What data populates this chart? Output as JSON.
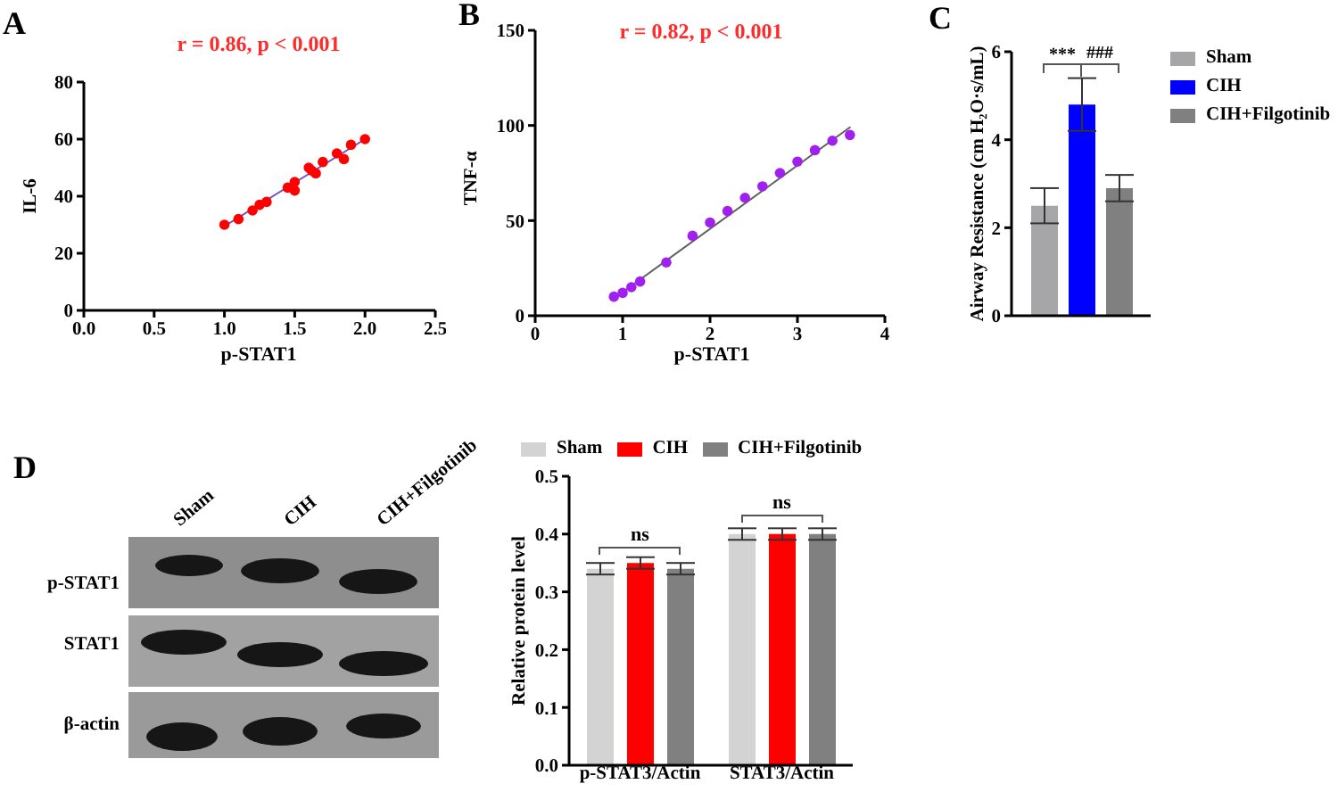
{
  "chart_data": [
    {
      "type": "scatter",
      "title": "A",
      "xlabel": "p-STAT1",
      "ylabel": "IL-6",
      "annotations": [
        "r = 0.86, p < 0.001"
      ],
      "series": [
        {
          "type": "scatter",
          "color": "#ff0000",
          "marker": "circle",
          "x": [
            1.0,
            1.1,
            1.2,
            1.25,
            1.3,
            1.45,
            1.5,
            1.5,
            1.6,
            1.62,
            1.65,
            1.7,
            1.8,
            1.85,
            1.9,
            2.0
          ],
          "values": [
            30,
            32,
            35,
            37,
            38,
            43,
            45,
            42,
            50,
            49,
            48,
            52,
            55,
            53,
            58,
            60
          ]
        },
        {
          "type": "line",
          "color": "#6a4fd0",
          "x": [
            1.0,
            2.0
          ],
          "values": [
            29.5,
            60
          ]
        }
      ],
      "xlim": [
        0,
        2.5
      ],
      "xticks": [
        {
          "value": 0,
          "label": "0.0"
        },
        0.5,
        {
          "value": 1,
          "label": "1.0"
        },
        1.5,
        {
          "value": 2,
          "label": "2.0"
        },
        2.5
      ],
      "ylim": [
        0,
        80
      ],
      "yticks": [
        0,
        20,
        40,
        60,
        80
      ]
    },
    {
      "type": "scatter",
      "title": "B",
      "xlabel": "p-STAT1",
      "ylabel": "TNF-α",
      "annotations": [
        "r = 0.82, p < 0.001"
      ],
      "series": [
        {
          "type": "scatter",
          "color": "#a020f0",
          "marker": "circle",
          "x": [
            0.9,
            1.0,
            1.1,
            1.2,
            1.5,
            1.8,
            2.0,
            2.2,
            2.4,
            2.6,
            2.8,
            3.0,
            3.2,
            3.4,
            3.6
          ],
          "values": [
            10,
            12,
            15,
            18,
            28,
            42,
            49,
            55,
            62,
            68,
            75,
            81,
            87,
            92,
            95
          ]
        },
        {
          "type": "line",
          "color": "#606060",
          "x": [
            0.9,
            3.6
          ],
          "values": [
            9,
            99
          ]
        }
      ],
      "xlim": [
        0,
        4
      ],
      "xticks": [
        0,
        1,
        2,
        3,
        4
      ],
      "ylim": [
        0,
        150
      ],
      "yticks": [
        0,
        50,
        100,
        150
      ]
    },
    {
      "type": "bar",
      "title": "C",
      "ylabel": "Airway Resistance (cm H₂O·s/mL)",
      "categories": [
        null
      ],
      "series": [
        {
          "name": "Sham",
          "color": "#a6a6a8",
          "values": [
            2.5
          ],
          "errors": [
            0.4
          ]
        },
        {
          "name": "CIH",
          "color": "#0000ff",
          "values": [
            4.8
          ],
          "errors": [
            0.6
          ]
        },
        {
          "name": "CIH+Filgotinib",
          "color": "#808080",
          "values": [
            2.9
          ],
          "errors": [
            0.3
          ]
        }
      ],
      "ylim": [
        0,
        6
      ],
      "yticks": [
        0,
        2,
        4,
        6
      ],
      "legend": "right",
      "annotations": [
        "***",
        "###"
      ]
    },
    {
      "type": "other",
      "title": "D",
      "annotations": [
        "Sham",
        "CIH",
        "CIH+Filgotinib",
        "p-STAT1",
        "STAT1",
        "β-actin"
      ]
    },
    {
      "type": "bar",
      "ylabel": "Relative protein level",
      "categories": [
        "p-STAT3/Actin",
        "STAT3/Actin"
      ],
      "series": [
        {
          "name": "Sham",
          "color": "#d3d3d3",
          "values": [
            0.34,
            0.4
          ],
          "errors": [
            0.01,
            0.01
          ]
        },
        {
          "name": "CIH",
          "color": "#ff0000",
          "values": [
            0.35,
            0.4
          ],
          "errors": [
            0.01,
            0.01
          ]
        },
        {
          "name": "CIH+Filgotinib",
          "color": "#808080",
          "values": [
            0.34,
            0.4
          ],
          "errors": [
            0.01,
            0.01
          ]
        }
      ],
      "ylim": [
        0,
        0.5
      ],
      "yticks": [
        {
          "value": 0,
          "label": "0.0"
        },
        0.1,
        0.2,
        0.3,
        0.4,
        0.5
      ],
      "legend": "top",
      "annotations": [
        "ns",
        "ns"
      ]
    }
  ]
}
